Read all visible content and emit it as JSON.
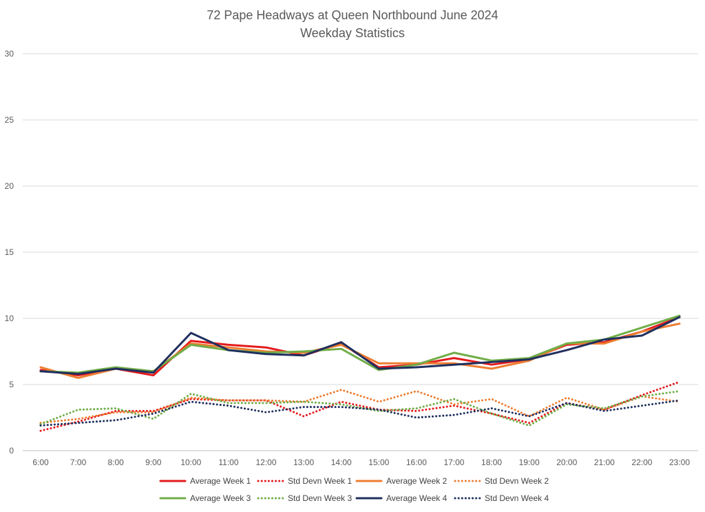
{
  "chart_data": {
    "type": "line",
    "title": "72 Pape Headways at Queen Northbound June 2024",
    "subtitle": "Weekday Statistics",
    "xlabel": "",
    "ylabel": "",
    "ylim": [
      0,
      30
    ],
    "yticks": [
      0,
      5,
      10,
      15,
      20,
      25,
      30
    ],
    "grid": true,
    "legend_position": "bottom",
    "categories": [
      "6:00",
      "7:00",
      "8:00",
      "9:00",
      "10:00",
      "11:00",
      "12:00",
      "13:00",
      "14:00",
      "15:00",
      "16:00",
      "17:00",
      "18:00",
      "19:00",
      "20:00",
      "21:00",
      "22:00",
      "23:00"
    ],
    "series": [
      {
        "name": "Average Week 1",
        "color": "#e31a1c",
        "dash": "solid",
        "values": [
          6.1,
          5.7,
          6.2,
          5.7,
          8.3,
          8.0,
          7.8,
          7.2,
          8.1,
          6.3,
          6.5,
          7.0,
          6.5,
          6.9,
          8.0,
          8.2,
          9.0,
          10.1
        ]
      },
      {
        "name": "Std Devn Week 1",
        "color": "#e31a1c",
        "dash": "dotted",
        "values": [
          1.5,
          2.2,
          3.0,
          3.0,
          3.9,
          3.8,
          3.8,
          2.6,
          3.7,
          3.1,
          3.0,
          3.4,
          2.8,
          2.1,
          3.6,
          3.1,
          4.2,
          5.2
        ]
      },
      {
        "name": "Average Week 2",
        "color": "#ed7d31",
        "dash": "solid",
        "values": [
          6.3,
          5.5,
          6.2,
          6.0,
          8.1,
          7.8,
          7.5,
          7.4,
          8.0,
          6.6,
          6.6,
          6.6,
          6.2,
          6.8,
          8.1,
          8.1,
          9.0,
          9.6
        ]
      },
      {
        "name": "Std Devn Week 2",
        "color": "#ed7d31",
        "dash": "dotted",
        "values": [
          2.1,
          2.4,
          2.9,
          2.9,
          4.0,
          3.8,
          3.8,
          3.7,
          4.6,
          3.7,
          4.5,
          3.5,
          3.9,
          2.6,
          4.0,
          3.1,
          4.1,
          3.7
        ]
      },
      {
        "name": "Average Week 3",
        "color": "#70ad47",
        "dash": "solid",
        "values": [
          6.0,
          5.9,
          6.3,
          6.0,
          8.0,
          7.6,
          7.4,
          7.5,
          7.7,
          6.1,
          6.5,
          7.4,
          6.8,
          7.0,
          8.1,
          8.4,
          9.3,
          10.2
        ]
      },
      {
        "name": "Std Devn Week 3",
        "color": "#70ad47",
        "dash": "dotted",
        "values": [
          2.0,
          3.1,
          3.2,
          2.4,
          4.3,
          3.6,
          3.6,
          3.7,
          3.5,
          3.0,
          3.2,
          3.9,
          2.8,
          1.9,
          3.5,
          3.2,
          4.1,
          4.5
        ]
      },
      {
        "name": "Average Week 4",
        "color": "#1f2f5f",
        "dash": "solid",
        "values": [
          6.0,
          5.8,
          6.2,
          5.9,
          8.9,
          7.6,
          7.3,
          7.2,
          8.2,
          6.2,
          6.3,
          6.5,
          6.7,
          6.9,
          7.6,
          8.4,
          8.7,
          10.1
        ]
      },
      {
        "name": "Std Devn Week 4",
        "color": "#1f2f5f",
        "dash": "dotted",
        "values": [
          1.9,
          2.1,
          2.3,
          2.8,
          3.7,
          3.4,
          2.9,
          3.3,
          3.3,
          3.1,
          2.5,
          2.7,
          3.2,
          2.6,
          3.6,
          3.0,
          3.4,
          3.8
        ]
      }
    ]
  }
}
